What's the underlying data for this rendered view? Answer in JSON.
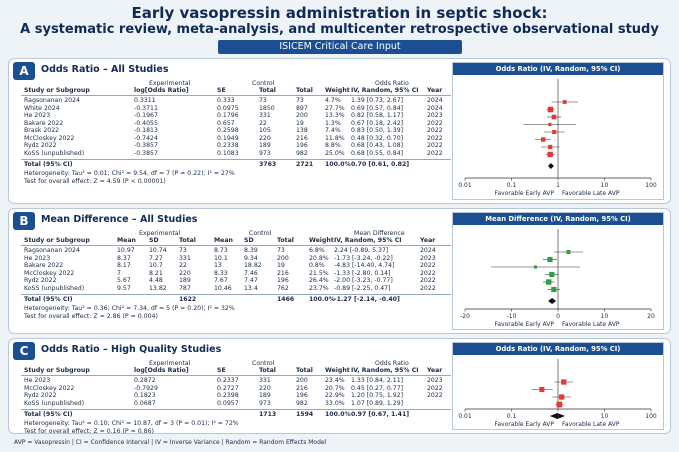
{
  "header": {
    "title": "Early vasopressin administration in septic shock:",
    "subtitle": "A systematic review, meta-analysis, and multicenter retrospective observational study",
    "badge": "ISICEM Critical Care Input"
  },
  "colors": {
    "navy": "#1b4f91",
    "red": "#e53935",
    "green": "#2e9e4a"
  },
  "sections": [
    {
      "letter": "A",
      "title": "Odds Ratio – All Studies",
      "plot_title": "Odds Ratio (IV, Random, 95% CI)",
      "scale": "log",
      "mark_color": "#e53935",
      "axis": {
        "ticks": [
          0.01,
          0.1,
          1,
          10,
          100
        ],
        "tick_labels": [
          "0.01",
          "0.1",
          "1",
          "10",
          "100"
        ],
        "left_label": "Favorable Early AVP",
        "right_label": "Favorable Late AVP"
      },
      "group_headers": [
        "Experimental",
        "Control",
        "Odds Ratio"
      ],
      "columns": [
        "Study or Subgroup",
        "log[Odds Ratio]",
        "SE",
        "Total",
        "Total",
        "Weight",
        "IV, Random, 95% CI",
        "Year"
      ],
      "rows": [
        {
          "name": "Ragsonanan 2024",
          "c1": "0.3311",
          "c2": "0.333",
          "c3": "73",
          "c4": "73",
          "weight": "4.7%",
          "ci": "1.39 [0.73, 2.67]",
          "year": "2024",
          "est": 1.39,
          "lo": 0.73,
          "hi": 2.67,
          "w": 4.7
        },
        {
          "name": "White 2024",
          "c1": "-0.3711",
          "c2": "0.0975",
          "c3": "1850",
          "c4": "897",
          "weight": "27.7%",
          "ci": "0.69 [0.57, 0.84]",
          "year": "2024",
          "est": 0.69,
          "lo": 0.57,
          "hi": 0.84,
          "w": 27.7
        },
        {
          "name": "He 2023",
          "c1": "-0.1967",
          "c2": "0.1796",
          "c3": "331",
          "c4": "200",
          "weight": "13.3%",
          "ci": "0.82 [0.58, 1.17]",
          "year": "2023",
          "est": 0.82,
          "lo": 0.58,
          "hi": 1.17,
          "w": 13.3
        },
        {
          "name": "Bakare 2022",
          "c1": "-0.4055",
          "c2": "0.657",
          "c3": "22",
          "c4": "19",
          "weight": "1.3%",
          "ci": "0.67 [0.18, 2.42]",
          "year": "2022",
          "est": 0.67,
          "lo": 0.18,
          "hi": 2.42,
          "w": 1.3
        },
        {
          "name": "Brask 2022",
          "c1": "-0.1813",
          "c2": "0.2598",
          "c3": "105",
          "c4": "138",
          "weight": "7.4%",
          "ci": "0.83 [0.50, 1.39]",
          "year": "2022",
          "est": 0.83,
          "lo": 0.5,
          "hi": 1.39,
          "w": 7.4
        },
        {
          "name": "McCloskey 2022",
          "c1": "-0.7424",
          "c2": "0.1949",
          "c3": "220",
          "c4": "216",
          "weight": "11.8%",
          "ci": "0.48 [0.32, 0.70]",
          "year": "2022",
          "est": 0.48,
          "lo": 0.32,
          "hi": 0.7,
          "w": 11.8
        },
        {
          "name": "Rydz 2022",
          "c1": "-0.3857",
          "c2": "0.2338",
          "c3": "189",
          "c4": "196",
          "weight": "8.8%",
          "ci": "0.68 [0.43, 1.08]",
          "year": "2022",
          "est": 0.68,
          "lo": 0.43,
          "hi": 1.08,
          "w": 8.8
        },
        {
          "name": "KoSS (unpublished)",
          "c1": "-0.3857",
          "c2": "0.1083",
          "c3": "973",
          "c4": "982",
          "weight": "25.0%",
          "ci": "0.68 [0.55, 0.84]",
          "year": "2022",
          "est": 0.68,
          "lo": 0.55,
          "hi": 0.84,
          "w": 25.0
        }
      ],
      "total": {
        "label": "Total (95% CI)",
        "exp": "3763",
        "ctl": "2721",
        "weight": "100.0%",
        "ci": "0.70 [0.61, 0.82]",
        "est": 0.7,
        "lo": 0.61,
        "hi": 0.82
      },
      "heterogeneity": "Heterogeneity: Tau² = 0.01; Chi² = 9.54, df = 7 (P = 0.22); I² = 27%",
      "overall": "Test for overall effect: Z = 4.59 (P < 0.00001)"
    },
    {
      "letter": "B",
      "title": "Mean Difference – All Studies",
      "plot_title": "Mean Difference (IV, Random, 95% CI)",
      "scale": "linear",
      "mark_color": "#2e9e4a",
      "axis": {
        "ticks": [
          -20,
          -10,
          0,
          10,
          20
        ],
        "tick_labels": [
          "-20",
          "-10",
          "0",
          "10",
          "20"
        ],
        "left_label": "Favorable Early AVP",
        "right_label": "Favorable Late AVP"
      },
      "group_headers": [
        "Experimental",
        "Control",
        "Mean Difference"
      ],
      "columns": [
        "Study or Subgroup",
        "Mean",
        "SD",
        "Total",
        "Mean",
        "SD",
        "Total",
        "Weight",
        "IV, Random, 95% CI",
        "Year"
      ],
      "rows": [
        {
          "name": "Ragsonanan 2024",
          "m1": "10.97",
          "s1": "10.74",
          "n1": "73",
          "m2": "8.73",
          "s2": "8.39",
          "n2": "73",
          "weight": "6.8%",
          "ci": "2.24 [-0.89, 5.37]",
          "year": "2024",
          "est": 2.24,
          "lo": -0.89,
          "hi": 5.37,
          "w": 6.8
        },
        {
          "name": "He 2023",
          "m1": "8.37",
          "s1": "7.27",
          "n1": "331",
          "m2": "10.1",
          "s2": "9.34",
          "n2": "200",
          "weight": "20.8%",
          "ci": "-1.73 [-3.24, -0.22]",
          "year": "2023",
          "est": -1.73,
          "lo": -3.24,
          "hi": -0.22,
          "w": 20.8
        },
        {
          "name": "Bakare 2022",
          "m1": "8.17",
          "s1": "10.7",
          "n1": "22",
          "m2": "13",
          "s2": "18.82",
          "n2": "19",
          "weight": "0.8%",
          "ci": "-4.83 [-14.40, 4.74]",
          "year": "2022",
          "est": -4.83,
          "lo": -14.4,
          "hi": 4.74,
          "w": 0.8
        },
        {
          "name": "McCloskey 2022",
          "m1": "7",
          "s1": "8.21",
          "n1": "220",
          "m2": "8.33",
          "s2": "7.46",
          "n2": "216",
          "weight": "21.5%",
          "ci": "-1.33 [-2.80, 0.14]",
          "year": "2022",
          "est": -1.33,
          "lo": -2.8,
          "hi": 0.14,
          "w": 21.5
        },
        {
          "name": "Rydz 2022",
          "m1": "5.67",
          "s1": "4.48",
          "n1": "189",
          "m2": "7.67",
          "s2": "7.47",
          "n2": "196",
          "weight": "26.4%",
          "ci": "-2.00 [-3.23, -0.77]",
          "year": "2022",
          "est": -2.0,
          "lo": -3.23,
          "hi": -0.77,
          "w": 26.4
        },
        {
          "name": "KoSS (unpublished)",
          "m1": "9.57",
          "s1": "13.82",
          "n1": "787",
          "m2": "10.46",
          "s2": "13.4",
          "n2": "762",
          "weight": "23.7%",
          "ci": "-0.89 [-2.25, 0.47]",
          "year": "2022",
          "est": -0.89,
          "lo": -2.25,
          "hi": 0.47,
          "w": 23.7
        }
      ],
      "total": {
        "label": "Total (95% CI)",
        "exp": "1622",
        "ctl": "1466",
        "weight": "100.0%",
        "ci": "-1.27 [-2.14, -0.40]",
        "est": -1.27,
        "lo": -2.14,
        "hi": -0.4
      },
      "heterogeneity": "Heterogeneity: Tau² = 0.36; Chi² = 7.34, df = 5 (P = 0.20); I² = 32%",
      "overall": "Test for overall effect: Z = 2.86 (P = 0.004)"
    },
    {
      "letter": "C",
      "title": "Odds Ratio – High Quality Studies",
      "plot_title": "Odds Ratio (IV, Random, 95% CI)",
      "scale": "log",
      "mark_color": "#e53935",
      "axis": {
        "ticks": [
          0.01,
          0.1,
          1,
          10,
          100
        ],
        "tick_labels": [
          "0.01",
          "0.1",
          "1",
          "10",
          "100"
        ],
        "left_label": "Favorable Early AVP",
        "right_label": "Favorable Late AVP"
      },
      "group_headers": [
        "Experimental",
        "Control",
        "Odds Ratio"
      ],
      "columns": [
        "Study or Subgroup",
        "log[Odds Ratio]",
        "SE",
        "Total",
        "Total",
        "Weight",
        "IV, Random, 95% CI",
        "Year"
      ],
      "rows": [
        {
          "name": "He 2023",
          "c1": "0.2872",
          "c2": "0.2337",
          "c3": "331",
          "c4": "200",
          "weight": "23.4%",
          "ci": "1.33 [0.84, 2.11]",
          "year": "2023",
          "est": 1.33,
          "lo": 0.84,
          "hi": 2.11,
          "w": 23.4
        },
        {
          "name": "McCloskey 2022",
          "c1": "-0.7929",
          "c2": "0.2727",
          "c3": "220",
          "c4": "216",
          "weight": "20.7%",
          "ci": "0.45 [0.27, 0.77]",
          "year": "2022",
          "est": 0.45,
          "lo": 0.27,
          "hi": 0.77,
          "w": 20.7
        },
        {
          "name": "Rydz 2022",
          "c1": "0.1823",
          "c2": "0.2398",
          "c3": "189",
          "c4": "196",
          "weight": "22.9%",
          "ci": "1.20 [0.75, 1.92]",
          "year": "2022",
          "est": 1.2,
          "lo": 0.75,
          "hi": 1.92,
          "w": 22.9
        },
        {
          "name": "KoSS (unpublished)",
          "c1": "0.0687",
          "c2": "0.0957",
          "c3": "973",
          "c4": "982",
          "weight": "33.0%",
          "ci": "1.07 [0.89, 1.29]",
          "year": "",
          "est": 1.07,
          "lo": 0.89,
          "hi": 1.29,
          "w": 33.0
        }
      ],
      "total": {
        "label": "Total (95% CI)",
        "exp": "1713",
        "ctl": "1594",
        "weight": "100.0%",
        "ci": "0.97 [0.67, 1.41]",
        "est": 0.97,
        "lo": 0.67,
        "hi": 1.41
      },
      "heterogeneity": "Heterogeneity: Tau² = 0.10; Chi² = 10.87, df = 3 (P = 0.01); I² = 72%",
      "overall": "Test for overall effect: Z = 0.16 (P = 0.86)"
    }
  ],
  "footer": "AVP = Vasopressin  |  CI = Confidence Interval  |  IV = Inverse Variance  |  Random = Random Effects Model"
}
